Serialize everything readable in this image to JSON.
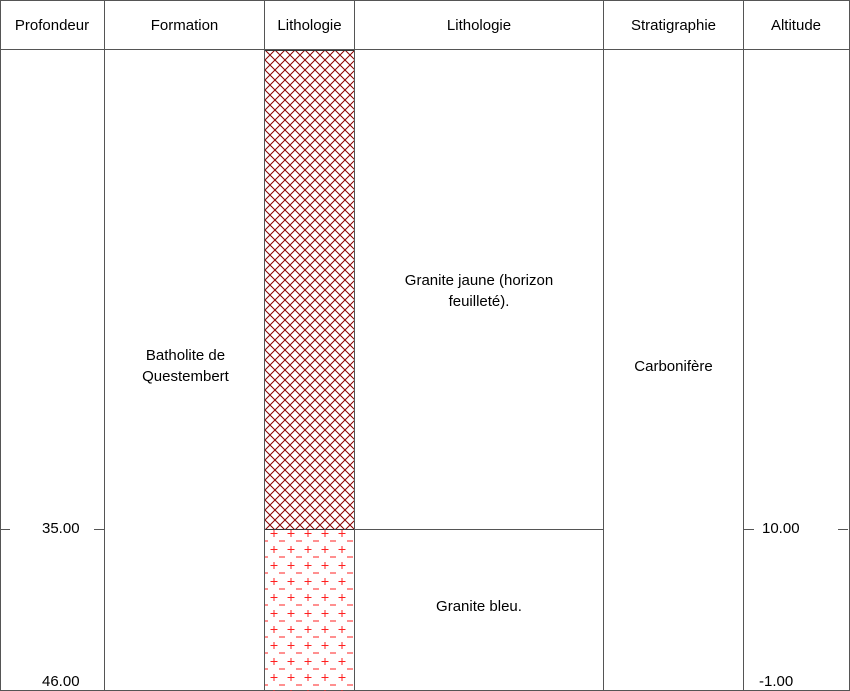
{
  "headers": {
    "depth": "Profondeur",
    "formation": "Formation",
    "lithology_pattern": "Lithologie",
    "lithology_desc": "Lithologie",
    "stratigraphy": "Stratigraphie",
    "altitude": "Altitude"
  },
  "formation": {
    "name": "Batholite de Questembert"
  },
  "layers": [
    {
      "description": "Granite jaune (horizon feuilleté).",
      "pattern": "crosshatch",
      "color": "#8b0000"
    },
    {
      "description": "Granite bleu.",
      "pattern": "plus-dash",
      "color": "#ff2020"
    }
  ],
  "stratigraphy": {
    "name": "Carbonifère"
  },
  "depth_ticks": {
    "boundary": "35.00",
    "bottom": "46.00"
  },
  "altitude_ticks": {
    "boundary": "10.00",
    "bottom": "-1.00"
  }
}
